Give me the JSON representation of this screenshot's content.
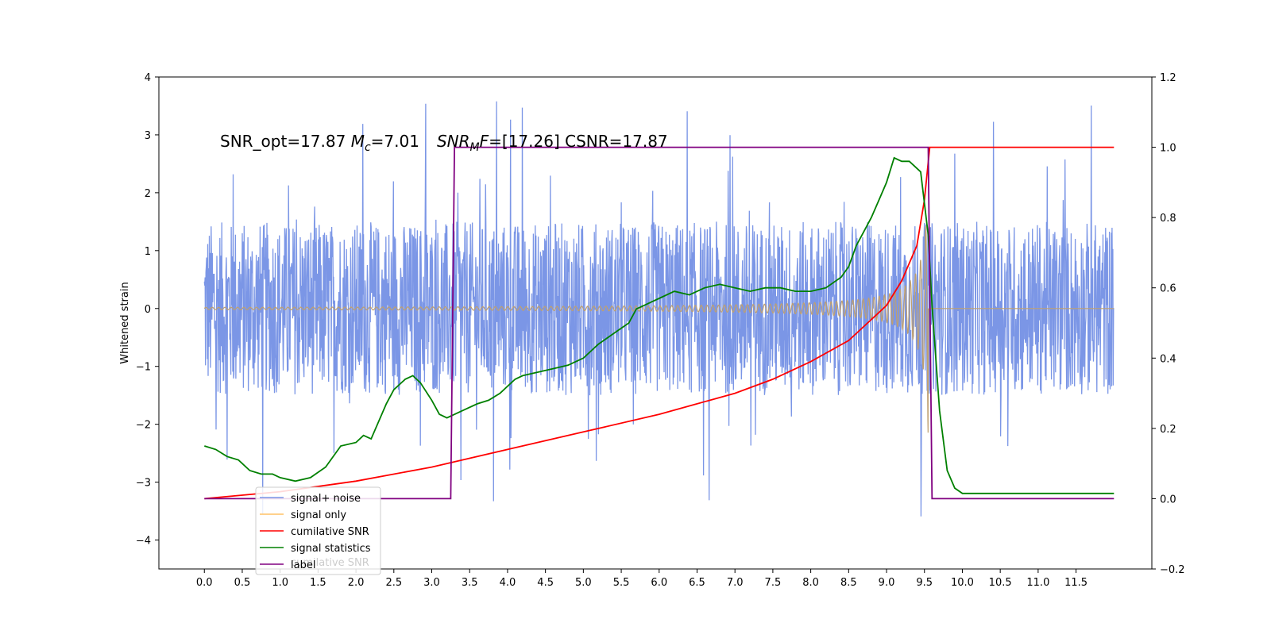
{
  "chart_data": {
    "type": "line",
    "annotation": {
      "part1": "SNR_opt=17.87 ",
      "mc_symbol": "M",
      "mc_sub": "c",
      "mc_value": "=7.01",
      "snr_symbol": "SNR",
      "snr_sub": "M",
      "snr_tail": "F",
      "snr_value": "=[17.26] CSNR=17.87"
    },
    "ylabel": "Whitened strain",
    "y2label": "",
    "xlim": [
      -0.6,
      12.5
    ],
    "ylim": [
      -4.5,
      4
    ],
    "y2lim": [
      -0.2,
      1.2
    ],
    "x_ticks": [
      "0.0",
      "0.5",
      "1.0",
      "1.5",
      "2.0",
      "2.5",
      "3.0",
      "3.5",
      "4.0",
      "4.5",
      "5.0",
      "5.5",
      "6.0",
      "6.5",
      "7.0",
      "7.5",
      "8.0",
      "8.5",
      "9.0",
      "9.5",
      "10.0",
      "10.5",
      "11.0",
      "11.5"
    ],
    "y_ticks": [
      "4",
      "3",
      "2",
      "1",
      "0",
      "−1",
      "−2",
      "−3",
      "−4"
    ],
    "y2_ticks": [
      "1.2",
      "1.0",
      "0.8",
      "0.6",
      "0.4",
      "0.2",
      "0.0",
      "−0.2"
    ],
    "legend": {
      "position": "lower-left",
      "entries": [
        "signal+ noise",
        "signal only",
        "cumilative SNR",
        "signal statistics",
        "label"
      ],
      "ghost_text": "cumilative SNR"
    },
    "colors": {
      "noise": "#7b96e6",
      "signal": "#bfa070",
      "signal_legend": "#ffc266",
      "cumulative_snr": "#ff0000",
      "statistics": "#008000",
      "label": "#800080"
    },
    "series": [
      {
        "name": "signal+ noise",
        "axis": "left",
        "kind": "noise",
        "x_range": [
          0.0,
          12.0
        ],
        "envelope": 1.5,
        "peak_abs": 3.6
      },
      {
        "name": "signal only",
        "axis": "left",
        "kind": "chirp",
        "x_start": 0.0,
        "x_merger": 9.55,
        "x_end": 12.0,
        "peak_amplitude": 3.4
      },
      {
        "name": "cumilative SNR",
        "axis": "right",
        "x": [
          0.0,
          1.0,
          2.0,
          3.0,
          4.0,
          5.0,
          6.0,
          7.0,
          7.5,
          8.0,
          8.5,
          9.0,
          9.2,
          9.4,
          9.5,
          9.57,
          9.6,
          12.0
        ],
        "y": [
          0.0,
          0.02,
          0.05,
          0.09,
          0.14,
          0.19,
          0.24,
          0.3,
          0.34,
          0.39,
          0.45,
          0.55,
          0.62,
          0.72,
          0.85,
          1.0,
          1.0,
          1.0
        ]
      },
      {
        "name": "signal statistics",
        "axis": "right",
        "x": [
          0.0,
          0.15,
          0.3,
          0.45,
          0.6,
          0.75,
          0.9,
          1.0,
          1.2,
          1.4,
          1.6,
          1.8,
          2.0,
          2.1,
          2.2,
          2.4,
          2.5,
          2.65,
          2.75,
          2.85,
          3.0,
          3.1,
          3.2,
          3.4,
          3.6,
          3.75,
          3.9,
          4.1,
          4.2,
          4.4,
          4.6,
          4.8,
          5.0,
          5.2,
          5.4,
          5.6,
          5.7,
          5.8,
          6.0,
          6.2,
          6.4,
          6.6,
          6.8,
          7.0,
          7.2,
          7.4,
          7.6,
          7.8,
          8.0,
          8.2,
          8.4,
          8.5,
          8.6,
          8.7,
          8.8,
          8.9,
          9.0,
          9.1,
          9.2,
          9.3,
          9.45,
          9.55,
          9.6,
          9.7,
          9.8,
          9.9,
          10.0,
          10.2,
          10.5,
          11.0,
          11.5,
          12.0
        ],
        "y": [
          0.15,
          0.14,
          0.12,
          0.11,
          0.08,
          0.07,
          0.07,
          0.06,
          0.05,
          0.06,
          0.09,
          0.15,
          0.16,
          0.18,
          0.17,
          0.27,
          0.31,
          0.34,
          0.35,
          0.33,
          0.28,
          0.24,
          0.23,
          0.25,
          0.27,
          0.28,
          0.3,
          0.34,
          0.35,
          0.36,
          0.37,
          0.38,
          0.4,
          0.44,
          0.47,
          0.5,
          0.54,
          0.55,
          0.57,
          0.59,
          0.58,
          0.6,
          0.61,
          0.6,
          0.59,
          0.6,
          0.6,
          0.59,
          0.59,
          0.6,
          0.63,
          0.66,
          0.72,
          0.76,
          0.8,
          0.85,
          0.9,
          0.97,
          0.96,
          0.96,
          0.93,
          0.75,
          0.55,
          0.25,
          0.08,
          0.03,
          0.015,
          0.015,
          0.015,
          0.015,
          0.015,
          0.015
        ]
      },
      {
        "name": "label",
        "axis": "right",
        "x": [
          0.0,
          3.25,
          3.3,
          9.55,
          9.6,
          12.0
        ],
        "y": [
          0.0,
          0.0,
          1.0,
          1.0,
          0.0,
          0.0
        ]
      }
    ]
  }
}
